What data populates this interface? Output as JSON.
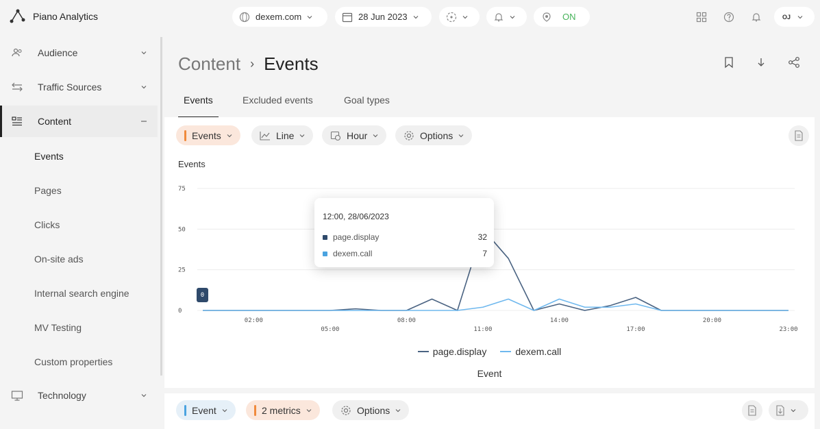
{
  "app": {
    "title": "Piano Analytics"
  },
  "topbar": {
    "site": "dexem.com",
    "date": "28 Jun 2023",
    "live_status": "ON",
    "avatar_initials": "OJ"
  },
  "sidebar": {
    "items": [
      {
        "label": "Audience",
        "icon": "users-icon"
      },
      {
        "label": "Traffic Sources",
        "icon": "traffic-icon"
      },
      {
        "label": "Content",
        "icon": "content-icon"
      },
      {
        "label": "Technology",
        "icon": "monitor-icon"
      }
    ],
    "sub_items": [
      {
        "label": "Events"
      },
      {
        "label": "Pages"
      },
      {
        "label": "Clicks"
      },
      {
        "label": "On-site ads"
      },
      {
        "label": "Internal search engine"
      },
      {
        "label": "MV Testing"
      },
      {
        "label": "Custom properties"
      }
    ]
  },
  "breadcrumb": {
    "root": "Content",
    "separator": "›",
    "current": "Events"
  },
  "tabs": [
    {
      "label": "Events"
    },
    {
      "label": "Excluded events"
    },
    {
      "label": "Goal types"
    }
  ],
  "toolbar": {
    "metric_chip": "Events",
    "chart_type_chip": "Line",
    "granularity_chip": "Hour",
    "options_chip": "Options"
  },
  "bottom_toolbar": {
    "dimension_chip": "Event",
    "metrics_chip": "2 metrics",
    "options_chip": "Options"
  },
  "tooltip": {
    "date": "12:00, 28/06/2023",
    "rows": [
      {
        "name": "page.display",
        "value": "32"
      },
      {
        "name": "dexem.call",
        "value": "7"
      }
    ]
  },
  "zero_marker": "0",
  "colors": {
    "accent_orange": "#f08a3c",
    "accent_blue": "#4aa3e0",
    "series_dark": "#4a6382",
    "series_light": "#6fb8ee",
    "live_green": "#47b35a"
  },
  "chart_data": {
    "type": "line",
    "title": "Events",
    "xlabel": "Event",
    "ylabel": "",
    "x_ticks": [
      "02:00",
      "05:00",
      "08:00",
      "11:00",
      "14:00",
      "17:00",
      "20:00",
      "23:00"
    ],
    "y_ticks": [
      "0",
      "25",
      "50",
      "75"
    ],
    "ylim": [
      0,
      75
    ],
    "x": [
      0,
      1,
      2,
      3,
      4,
      5,
      6,
      7,
      8,
      9,
      10,
      11,
      12,
      13,
      14,
      15,
      16,
      17,
      18,
      19,
      20,
      21,
      22,
      23
    ],
    "series": [
      {
        "name": "page.display",
        "values": [
          0,
          0,
          0,
          0,
          0,
          0,
          1,
          0,
          0,
          7,
          0,
          50,
          32,
          0,
          4,
          0,
          3,
          8,
          0,
          0,
          0,
          0,
          0,
          0
        ]
      },
      {
        "name": "dexem.call",
        "values": [
          0,
          0,
          0,
          0,
          0,
          0,
          0,
          0,
          0,
          0,
          0,
          2,
          7,
          0,
          7,
          2,
          2,
          4,
          0,
          0,
          0,
          0,
          0,
          0
        ]
      }
    ],
    "legend": "bottom",
    "grid": true
  }
}
